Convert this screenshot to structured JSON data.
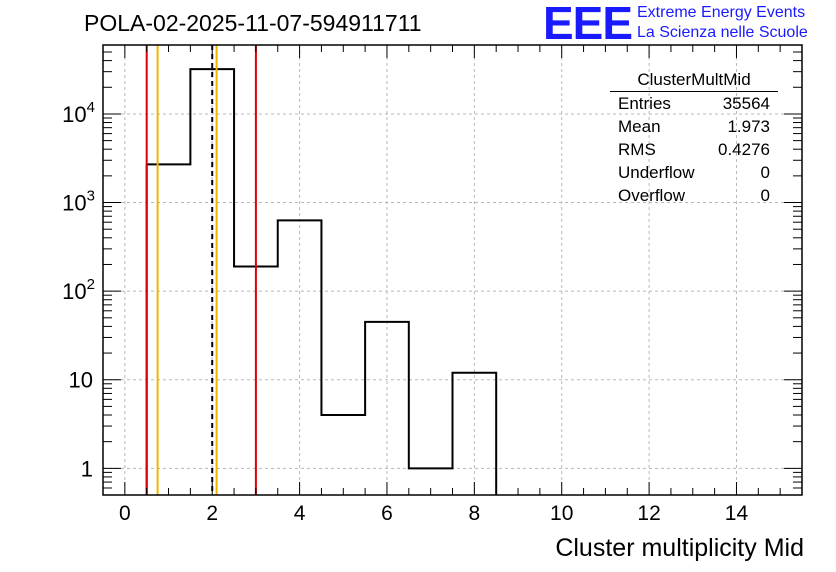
{
  "title": "POLA-02-2025-11-07-594911711",
  "logo": {
    "mark": "EEE",
    "line1": "Extreme Energy Events",
    "line2": "La Scienza nelle Scuole",
    "color": "#1a1aff"
  },
  "stats": {
    "name": "ClusterMultMid",
    "rows": [
      {
        "label": "Entries",
        "value": "35564"
      },
      {
        "label": "Mean",
        "value": "1.973"
      },
      {
        "label": "RMS",
        "value": "0.4276"
      },
      {
        "label": "Underflow",
        "value": "0"
      },
      {
        "label": "Overflow",
        "value": "0"
      }
    ]
  },
  "chart_data": {
    "type": "bar",
    "title": "POLA-02-2025-11-07-594911711",
    "xlabel": "Cluster multiplicity Mid",
    "ylabel": "",
    "yscale": "log",
    "xlim": [
      -0.5,
      15.5
    ],
    "ylim": [
      0.5,
      60000
    ],
    "grid": true,
    "bin_edges": [
      0.5,
      1.5,
      2.5,
      3.5,
      4.5,
      5.5,
      6.5,
      7.5,
      8.5
    ],
    "values": [
      2700,
      32000,
      190,
      630,
      4,
      45,
      1,
      12
    ],
    "x_ticks": [
      "0",
      "2",
      "4",
      "6",
      "8",
      "10",
      "12",
      "14"
    ],
    "x_tick_values": [
      0,
      2,
      4,
      6,
      8,
      10,
      12,
      14
    ],
    "y_ticks": [
      {
        "value": 1,
        "base": "1",
        "exp": ""
      },
      {
        "value": 10,
        "base": "10",
        "exp": ""
      },
      {
        "value": 100,
        "base": "10",
        "exp": "2"
      },
      {
        "value": 1000,
        "base": "10",
        "exp": "3"
      },
      {
        "value": 10000,
        "base": "10",
        "exp": "4"
      }
    ],
    "vertical_lines": [
      {
        "x": 0.5,
        "color": "#dd0000",
        "style": "solid"
      },
      {
        "x": 0.75,
        "color": "#f0b400",
        "style": "solid"
      },
      {
        "x": 2.0,
        "color": "#000000",
        "style": "dashed"
      },
      {
        "x": 2.1,
        "color": "#f0b400",
        "style": "solid"
      },
      {
        "x": 3.0,
        "color": "#dd0000",
        "style": "solid"
      }
    ]
  }
}
